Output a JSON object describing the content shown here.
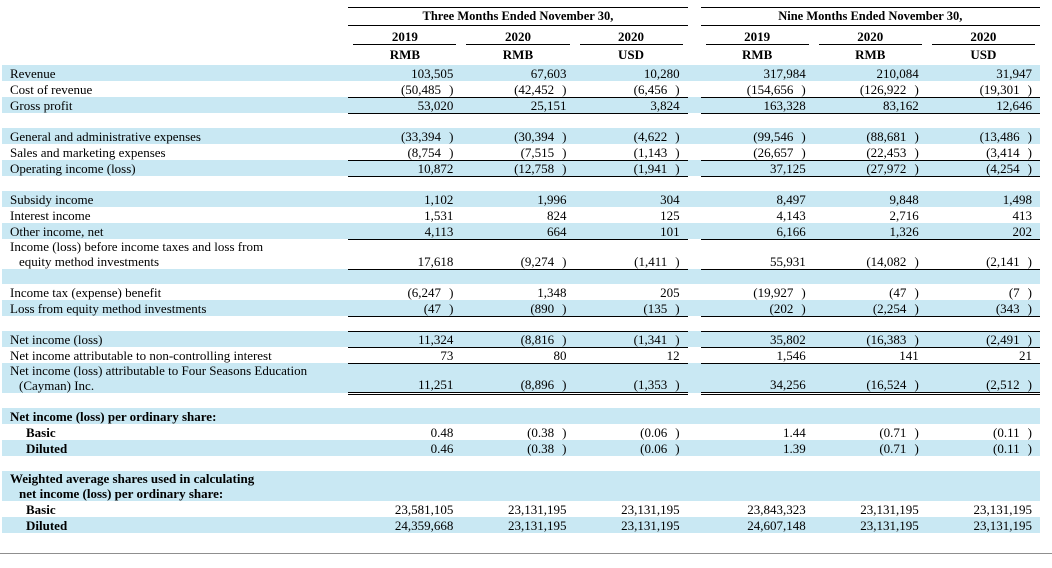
{
  "colors": {
    "row_highlight": "#c9e8f3",
    "rule": "#000000",
    "bottom_divider": "#8f8f8f"
  },
  "table": {
    "period_headers": [
      "Three Months Ended November 30,",
      "Nine Months Ended November 30,"
    ],
    "years": [
      "2019",
      "2020",
      "2020",
      "2019",
      "2020",
      "2020"
    ],
    "currencies": [
      "RMB",
      "RMB",
      "USD",
      "RMB",
      "RMB",
      "USD"
    ],
    "rows": [
      {
        "label": "Revenue",
        "shaded": true,
        "values": [
          "103,505",
          "67,603",
          "10,280",
          "317,984",
          "210,084",
          "31,947"
        ]
      },
      {
        "label": "Cost of revenue",
        "rule": "bottom",
        "values": [
          "(50,485)",
          "(42,452)",
          "(6,456)",
          "(154,656)",
          "(126,922)",
          "(19,301)"
        ]
      },
      {
        "label": "Gross profit",
        "bold": true,
        "shaded": true,
        "rule": "bottom",
        "values": [
          "53,020",
          "25,151",
          "3,824",
          "163,328",
          "83,162",
          "12,646"
        ]
      },
      {
        "spacer": true
      },
      {
        "label": "General and administrative expenses",
        "shaded": true,
        "values": [
          "(33,394)",
          "(30,394)",
          "(4,622)",
          "(99,546)",
          "(88,681)",
          "(13,486)"
        ]
      },
      {
        "label": "Sales and marketing expenses",
        "rule": "bottom",
        "values": [
          "(8,754)",
          "(7,515)",
          "(1,143)",
          "(26,657)",
          "(22,453)",
          "(3,414)"
        ]
      },
      {
        "label": "Operating income (loss)",
        "bold": true,
        "shaded": true,
        "rule": "bottom",
        "values": [
          "10,872",
          "(12,758)",
          "(1,941)",
          "37,125",
          "(27,972)",
          "(4,254)"
        ]
      },
      {
        "spacer": true
      },
      {
        "label": "Subsidy income",
        "shaded": true,
        "values": [
          "1,102",
          "1,996",
          "304",
          "8,497",
          "9,848",
          "1,498"
        ]
      },
      {
        "label": "Interest income",
        "values": [
          "1,531",
          "824",
          "125",
          "4,143",
          "2,716",
          "413"
        ]
      },
      {
        "label": "Other income, net",
        "shaded": true,
        "rule": "bottom",
        "values": [
          "4,113",
          "664",
          "101",
          "6,166",
          "1,326",
          "202"
        ]
      },
      {
        "label": "Income (loss) before income taxes and loss from",
        "label2": "equity method investments",
        "bold": true,
        "rule": "bottom",
        "values": [
          "17,618",
          "(9,274)",
          "(1,411)",
          "55,931",
          "(14,082)",
          "(2,141)"
        ]
      },
      {
        "spacer": true,
        "shaded": true
      },
      {
        "label": "Income tax (expense) benefit",
        "values": [
          "(6,247)",
          "1,348",
          "205",
          "(19,927)",
          "(47)",
          "(7)"
        ]
      },
      {
        "label": "Loss from equity method investments",
        "shaded": true,
        "rule": "bottom",
        "values": [
          "(47)",
          "(890)",
          "(135)",
          "(202)",
          "(2,254)",
          "(343)"
        ]
      },
      {
        "spacer": true
      },
      {
        "label": "Net income (loss)",
        "bold": true,
        "shaded": true,
        "rule": "top-bottom",
        "values": [
          "11,324",
          "(8,816)",
          "(1,341)",
          "35,802",
          "(16,383)",
          "(2,491)"
        ]
      },
      {
        "label": "Net income attributable to non-controlling interest",
        "rule": "bottom",
        "values": [
          "73",
          "80",
          "12",
          "1,546",
          "141",
          "21"
        ]
      },
      {
        "label": "Net income (loss) attributable to Four Seasons Education",
        "label2": "(Cayman) Inc.",
        "bold": true,
        "shaded": true,
        "rule": "double",
        "values": [
          "11,251",
          "(8,896)",
          "(1,353)",
          "34,256",
          "(16,524)",
          "(2,512)"
        ]
      },
      {
        "spacer": true
      },
      {
        "label": "Net income (loss) per ordinary share:",
        "labelBold": true,
        "shaded": true
      },
      {
        "label": "Basic",
        "labelBold": true,
        "indent": true,
        "values": [
          "0.48",
          "(0.38)",
          "(0.06)",
          "1.44",
          "(0.71)",
          "(0.11)"
        ]
      },
      {
        "label": "Diluted",
        "labelBold": true,
        "indent": true,
        "shaded": true,
        "values": [
          "0.46",
          "(0.38)",
          "(0.06)",
          "1.39",
          "(0.71)",
          "(0.11)"
        ]
      },
      {
        "spacer": true
      },
      {
        "label": "Weighted average shares used in calculating",
        "label2": "net income (loss) per ordinary share:",
        "labelBold": true,
        "shaded": true
      },
      {
        "label": "Basic",
        "labelBold": true,
        "indent": true,
        "values": [
          "23,581,105",
          "23,131,195",
          "23,131,195",
          "23,843,323",
          "23,131,195",
          "23,131,195"
        ]
      },
      {
        "label": "Diluted",
        "labelBold": true,
        "indent": true,
        "shaded": true,
        "values": [
          "24,359,668",
          "23,131,195",
          "23,131,195",
          "24,607,148",
          "23,131,195",
          "23,131,195"
        ]
      }
    ]
  }
}
